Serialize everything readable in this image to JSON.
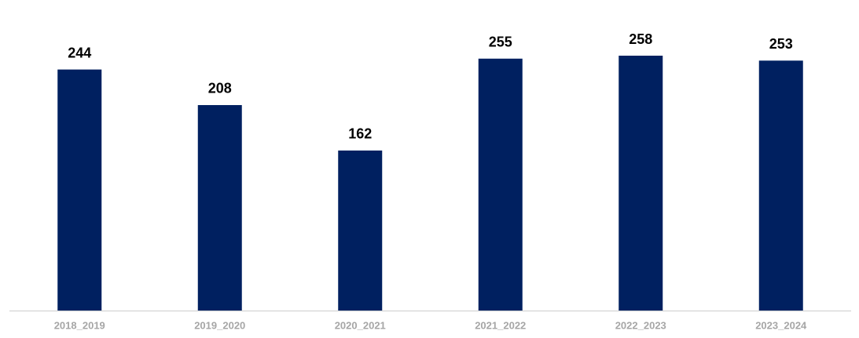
{
  "chart_data": {
    "type": "bar",
    "categories": [
      "2018_2019",
      "2019_2020",
      "2020_2021",
      "2021_2022",
      "2022_2023",
      "2023_2024"
    ],
    "values": [
      244,
      208,
      162,
      255,
      258,
      253
    ],
    "color": "#002060"
  }
}
